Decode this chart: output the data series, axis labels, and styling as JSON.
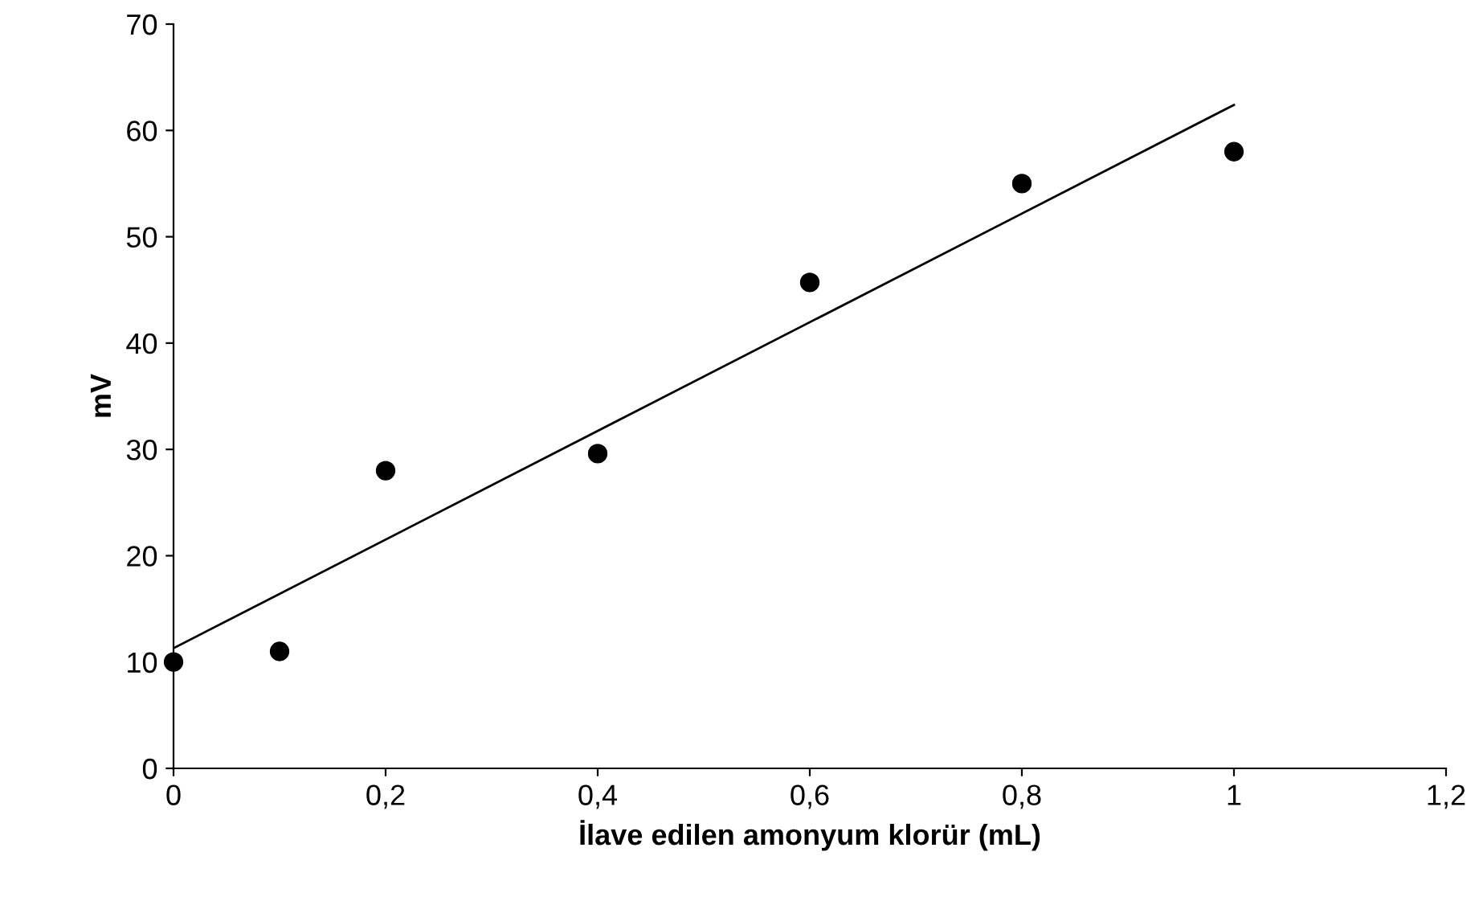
{
  "chart_data": {
    "type": "scatter",
    "xlabel": "İlave edilen amonyum klorür (mL)",
    "ylabel": "mV",
    "xlim": [
      0,
      1.2
    ],
    "ylim": [
      0,
      70
    ],
    "xticks": [
      0,
      {
        "value": 0.2,
        "label": "0,2"
      },
      {
        "value": 0.4,
        "label": "0,4"
      },
      {
        "value": 0.6,
        "label": "0,6"
      },
      {
        "value": 0.8,
        "label": "0,8"
      },
      1,
      {
        "value": 1.2,
        "label": "1,2"
      }
    ],
    "yticks": [
      0,
      10,
      20,
      30,
      40,
      50,
      60,
      70
    ],
    "grid": false,
    "legend": false,
    "series": [
      {
        "color": "#000000",
        "marker": "circle",
        "x": [
          0,
          0.1,
          0.2,
          0.4,
          0.6,
          0.8,
          1
        ],
        "values": [
          10,
          11,
          28,
          29.6,
          45.7,
          55,
          58
        ]
      },
      {
        "type": "line",
        "color": "#000000",
        "x": [
          0,
          1
        ],
        "values": [
          11.3,
          62.4
        ],
        "line_style": "solid",
        "marker": "none"
      }
    ]
  }
}
